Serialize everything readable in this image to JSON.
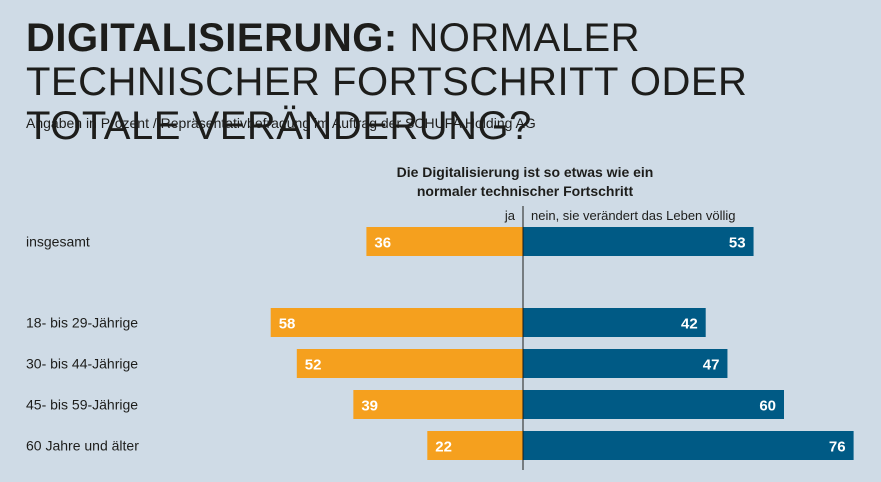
{
  "header": {
    "title_bold": "DIGITALISIERUNG:",
    "title_rest": " NORMALER TECHNISCHER FORTSCHRITT ODER TOTALE VERÄNDERUNG?",
    "subtitle": "Angaben in Prozent / Repräsentativbefragung im Auftrag der SCHUFA Holding AG"
  },
  "chart_data": {
    "type": "bar",
    "orientation": "diverging-horizontal",
    "title": "Die Digitalisierung ist so etwas wie ein normaler technischer Fortschritt",
    "question_line1": "Die Digitalisierung ist so etwas wie ein",
    "question_line2": "normaler technischer Fortschritt",
    "categories": [
      "insgesamt",
      "18- bis 29-Jährige",
      "30- bis 44-Jährige",
      "45- bis 59-Jährige",
      "60 Jahre und älter"
    ],
    "series": [
      {
        "name": "ja",
        "color": "#f5a01e",
        "values": [
          36,
          58,
          52,
          39,
          22
        ]
      },
      {
        "name": "nein, sie verändert das Leben völlig",
        "color": "#005a85",
        "values": [
          53,
          42,
          47,
          60,
          76
        ]
      }
    ],
    "unit": "%",
    "axis_color": "#1d1d1b"
  }
}
